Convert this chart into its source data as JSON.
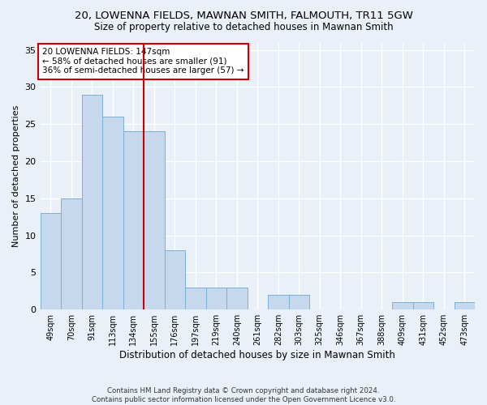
{
  "title": "20, LOWENNA FIELDS, MAWNAN SMITH, FALMOUTH, TR11 5GW",
  "subtitle": "Size of property relative to detached houses in Mawnan Smith",
  "xlabel": "Distribution of detached houses by size in Mawnan Smith",
  "ylabel": "Number of detached properties",
  "categories": [
    "49sqm",
    "70sqm",
    "91sqm",
    "113sqm",
    "134sqm",
    "155sqm",
    "176sqm",
    "197sqm",
    "219sqm",
    "240sqm",
    "261sqm",
    "282sqm",
    "303sqm",
    "325sqm",
    "346sqm",
    "367sqm",
    "388sqm",
    "409sqm",
    "431sqm",
    "452sqm",
    "473sqm"
  ],
  "values": [
    13,
    15,
    29,
    26,
    24,
    24,
    8,
    3,
    3,
    3,
    0,
    2,
    2,
    0,
    0,
    0,
    0,
    1,
    1,
    0,
    1
  ],
  "bar_color": "#c5d8ed",
  "bar_edge_color": "#7bafd4",
  "vline_x": 4.5,
  "vline_color": "#cc0000",
  "annotation_lines": [
    "20 LOWENNA FIELDS: 147sqm",
    "← 58% of detached houses are smaller (91)",
    "36% of semi-detached houses are larger (57) →"
  ],
  "annotation_box_color": "#ffffff",
  "annotation_box_edge": "#cc0000",
  "ylim": [
    0,
    36
  ],
  "yticks": [
    0,
    5,
    10,
    15,
    20,
    25,
    30,
    35
  ],
  "title_fontsize": 9.5,
  "subtitle_fontsize": 8.5,
  "xlabel_fontsize": 8.5,
  "ylabel_fontsize": 8,
  "footer": "Contains HM Land Registry data © Crown copyright and database right 2024.\nContains public sector information licensed under the Open Government Licence v3.0.",
  "bg_color": "#eaf0f8",
  "grid_color": "#ffffff"
}
